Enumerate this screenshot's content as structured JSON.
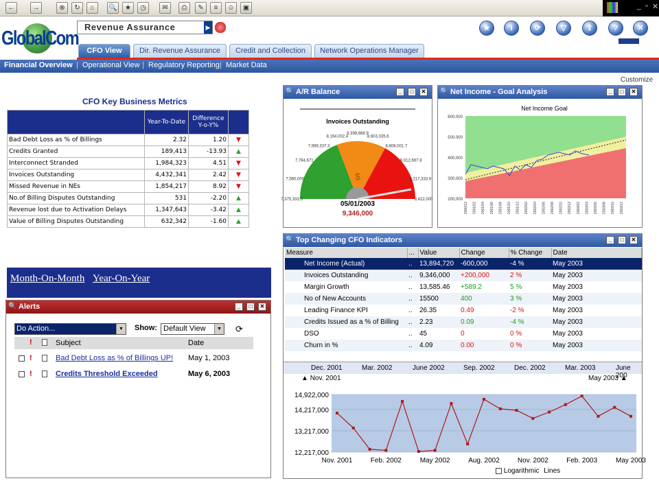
{
  "header": {
    "report_selector": "Revenue Assurance",
    "logo": "GlobalCom"
  },
  "tabs": [
    {
      "label": "CFO View",
      "active": true
    },
    {
      "label": "Dir. Revenue Assurance"
    },
    {
      "label": "Credit and Collection"
    },
    {
      "label": "Network Operations Manager"
    }
  ],
  "subnav": [
    "Financial Overview",
    "Operational View",
    "Regulatory Reporting",
    "Market Data"
  ],
  "customize": "Customize",
  "metrics": {
    "title": "CFO Key Business Metrics",
    "col_ytd": "Year-To-Date",
    "col_diff": "Difference Y-o-Y%",
    "rows": [
      {
        "label": "Bad Debt Loss as % of Billings",
        "ytd": "2.32",
        "diff": "1.20",
        "dir": "down"
      },
      {
        "label": "Credits Granted",
        "ytd": "189,413",
        "diff": "-13.93",
        "dir": "up"
      },
      {
        "label": "Interconnect Stranded",
        "ytd": "1,984,323",
        "diff": "4.51",
        "dir": "down"
      },
      {
        "label": "Invoices Outstanding",
        "ytd": "4,432,341",
        "diff": "2.42",
        "dir": "down"
      },
      {
        "label": "Missed Revenue in NEs",
        "ytd": "1,854,217",
        "diff": "8.92",
        "dir": "down"
      },
      {
        "label": "No.of Billing Disputes Outstanding",
        "ytd": "531",
        "diff": "-2.20",
        "dir": "up"
      },
      {
        "label": "Revenue lost due to Activation Delays",
        "ytd": "1,347,643",
        "diff": "-3.42",
        "dir": "up"
      },
      {
        "label": "Value of Billing Disputes Outstanding",
        "ytd": "632,342",
        "diff": "-1.60",
        "dir": "up"
      }
    ]
  },
  "mom": {
    "month": "Month-On-Month",
    "year": "Year-On-Year"
  },
  "alerts": {
    "title": "Alerts",
    "action": "Do Action...",
    "show_label": "Show:",
    "view": "Default View",
    "col_subject": "Subject",
    "col_date": "Date",
    "items": [
      {
        "subject": "Bad Debt Loss as % of Billings UP!",
        "date": "May 1, 2003",
        "bold": false
      },
      {
        "subject": "Credits Threshold Exceeded",
        "date": "May 6, 2003",
        "bold": true
      }
    ]
  },
  "ar": {
    "title": "A/R Balance",
    "chart_title": "Invoices Outstanding",
    "date": "05/01/2003",
    "value": "9,346,000",
    "currency": "$",
    "gauge_labels": [
      "7,375,333.3",
      "7,580,000",
      "7,784,671",
      "7,989,337.3",
      "8,194,002.4",
      "8,398,668.9",
      "8,603,335.6",
      "8,808,001.7",
      "9,012,667.8",
      "9,217,333.9",
      "9,422,000"
    ]
  },
  "netinc": {
    "title": "Net Income - Goal Analysis",
    "chart_title": "Net Income Goal",
    "y_ticks": [
      "600,000",
      "500,000",
      "400,000",
      "300,000",
      "200,000"
    ],
    "x_ticks": [
      "2000/12",
      "2001/02",
      "2001/04",
      "2001/06",
      "2001/08",
      "2001/10",
      "2001/12",
      "2002/02",
      "2002/04",
      "2002/06",
      "2002/08",
      "2002/10",
      "2002/12",
      "2003/02",
      "2003/04",
      "2003/06",
      "2003/08",
      "2003/10",
      "2003/12"
    ]
  },
  "topchg": {
    "title": "Top Changing CFO Indicators",
    "cols": [
      "Measure",
      "...",
      "Value",
      "Change",
      "% Change",
      "Date"
    ],
    "rows": [
      {
        "measure": "Net Income (Actual)",
        "value": "13,894,720",
        "change": "-600,000",
        "pct": "-4 %",
        "date": "May 2003",
        "cls": "neg"
      },
      {
        "measure": "Invoices Outstanding",
        "value": "9,346,000",
        "change": "+200,000",
        "pct": "2 %",
        "date": "May 2003",
        "cls": "neg"
      },
      {
        "measure": "Margin Growth",
        "value": "13,585.46",
        "change": "+589.2",
        "pct": "5 %",
        "date": "May 2003",
        "cls": "pos"
      },
      {
        "measure": "No of New Accounts",
        "value": "15500",
        "change": "400",
        "pct": "3 %",
        "date": "May 2003",
        "cls": "pos"
      },
      {
        "measure": "Leading Finance KPI",
        "value": "26.35",
        "change": "0.49",
        "pct": "-2 %",
        "date": "May 2003",
        "cls": "neg"
      },
      {
        "measure": "Credits Issued as a % of Billing",
        "value": "2.23",
        "change": "0.09",
        "pct": "-4 %",
        "date": "May 2003",
        "cls": "pos"
      },
      {
        "measure": "DSO",
        "value": "45",
        "change": "0",
        "pct": "0 %",
        "date": "May 2003",
        "cls": "neg"
      },
      {
        "measure": "Churn in %",
        "value": "4.09",
        "change": "0.00",
        "pct": "0 %",
        "date": "May 2003",
        "cls": "neg"
      }
    ],
    "timeline": [
      "Dec. 2001",
      "Mar. 2002",
      "June 2002",
      "Sep. 2002",
      "Dec. 2002",
      "Mar. 2003",
      "June 200"
    ],
    "range_start": "Nov. 2001",
    "range_end": "May 2003",
    "logarithmic": "Logarithmic",
    "lines": "Lines"
  },
  "chart_data": {
    "type": "line",
    "ylim": [
      12217000,
      14922000
    ],
    "y_ticks": [
      {
        "v": 14922000,
        "label": "14,922,000"
      },
      {
        "v": 14217000,
        "label": "14,217,000"
      },
      {
        "v": 13217000,
        "label": "13,217,000"
      },
      {
        "v": 12217000,
        "label": "12,217,000"
      }
    ],
    "x_labels": [
      "Nov. 2001",
      "Feb. 2002",
      "May 2002",
      "Aug. 2002",
      "Nov. 2002",
      "Feb. 2003",
      "May 2003"
    ],
    "values": [
      14050000,
      13350000,
      12350000,
      12300000,
      14600000,
      12250000,
      12300000,
      14500000,
      12600000,
      14700000,
      14250000,
      14180000,
      13800000,
      14100000,
      14450000,
      14850000,
      13900000,
      14320000,
      13900000
    ],
    "color": "#b01818"
  }
}
